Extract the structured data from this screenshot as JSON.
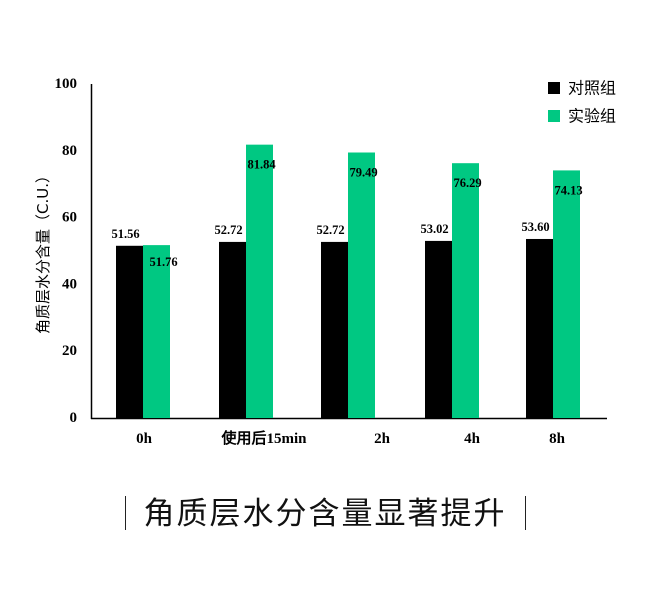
{
  "chart_data": {
    "type": "bar",
    "categories": [
      "0h",
      "使用后15min",
      "2h",
      "4h",
      "8h"
    ],
    "series": [
      {
        "name": "对照组",
        "values": [
          51.56,
          52.72,
          52.72,
          53.02,
          53.6
        ],
        "color": "#000000"
      },
      {
        "name": "实验组",
        "values": [
          51.76,
          81.84,
          79.49,
          76.29,
          74.13
        ],
        "color": "#00C882"
      }
    ],
    "data_labels": [
      [
        "51.56",
        "52.72",
        "52.72",
        "53.02",
        "53.60"
      ],
      [
        "51.76",
        "81.84",
        "79.49",
        "76.29",
        "74.13"
      ]
    ],
    "ylabel": "角质层水分含量（C.U.）",
    "xlabel": "",
    "ylim": [
      0,
      100
    ],
    "yticks": [
      0,
      20,
      40,
      60,
      80,
      100
    ],
    "grid": false,
    "legend": "top-right"
  },
  "caption": "角质层水分含量显著提升"
}
